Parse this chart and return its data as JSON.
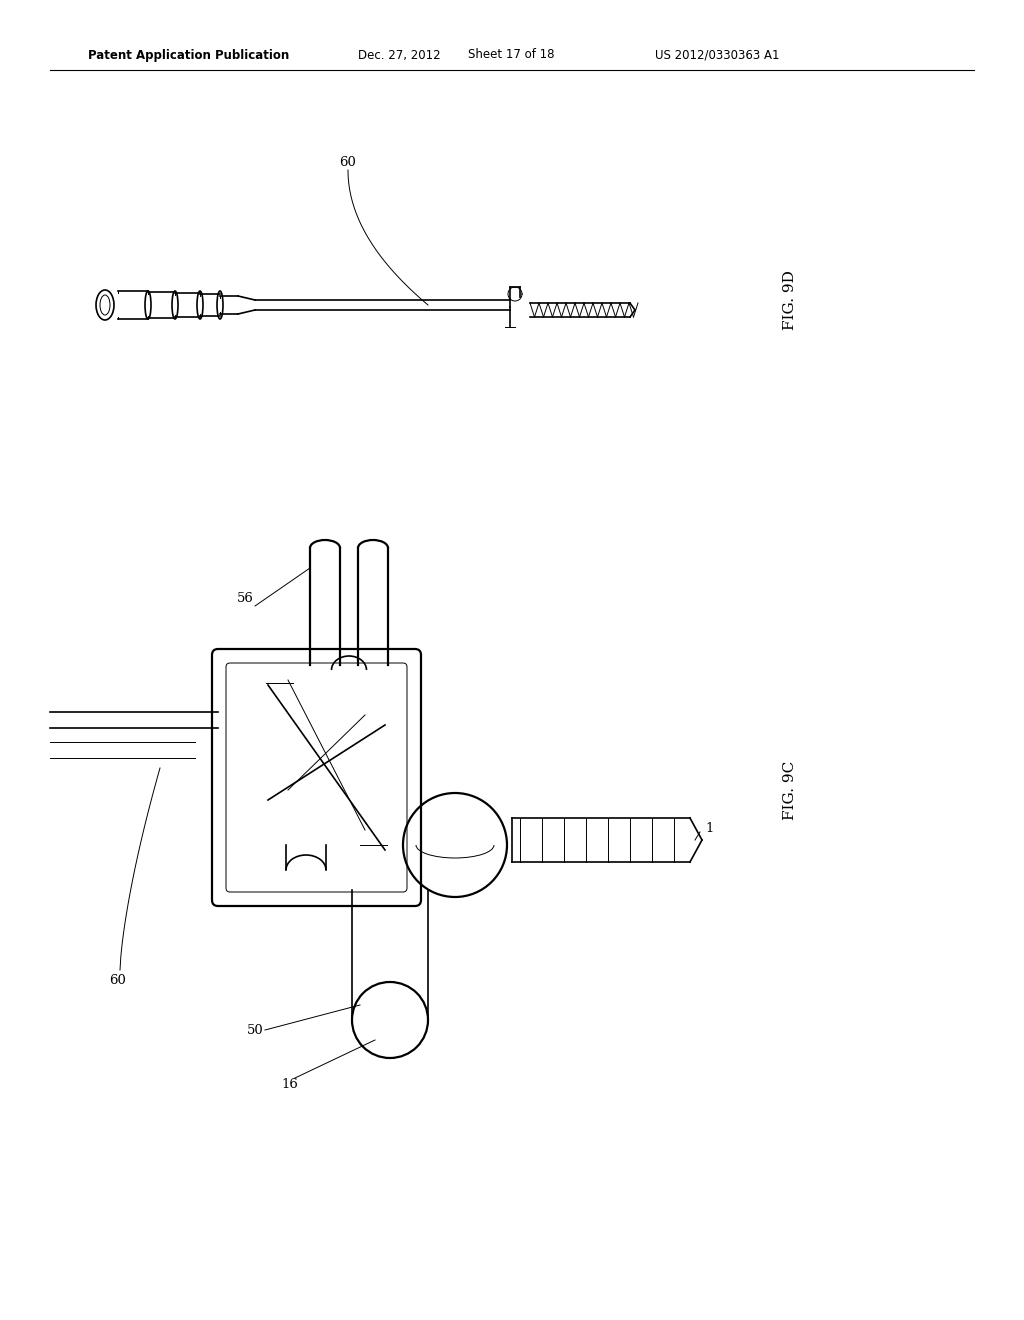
{
  "background_color": "#ffffff",
  "header_text": "Patent Application Publication",
  "header_date": "Dec. 27, 2012",
  "header_sheet": "Sheet 17 of 18",
  "header_patent": "US 2012/0330363 A1",
  "fig9d_label": "FIG. 9D",
  "fig9c_label": "FIG. 9C",
  "label_60_top": "60",
  "label_60_bottom": "60",
  "label_50": "50",
  "label_16": "16",
  "label_56": "56",
  "label_1": "1"
}
